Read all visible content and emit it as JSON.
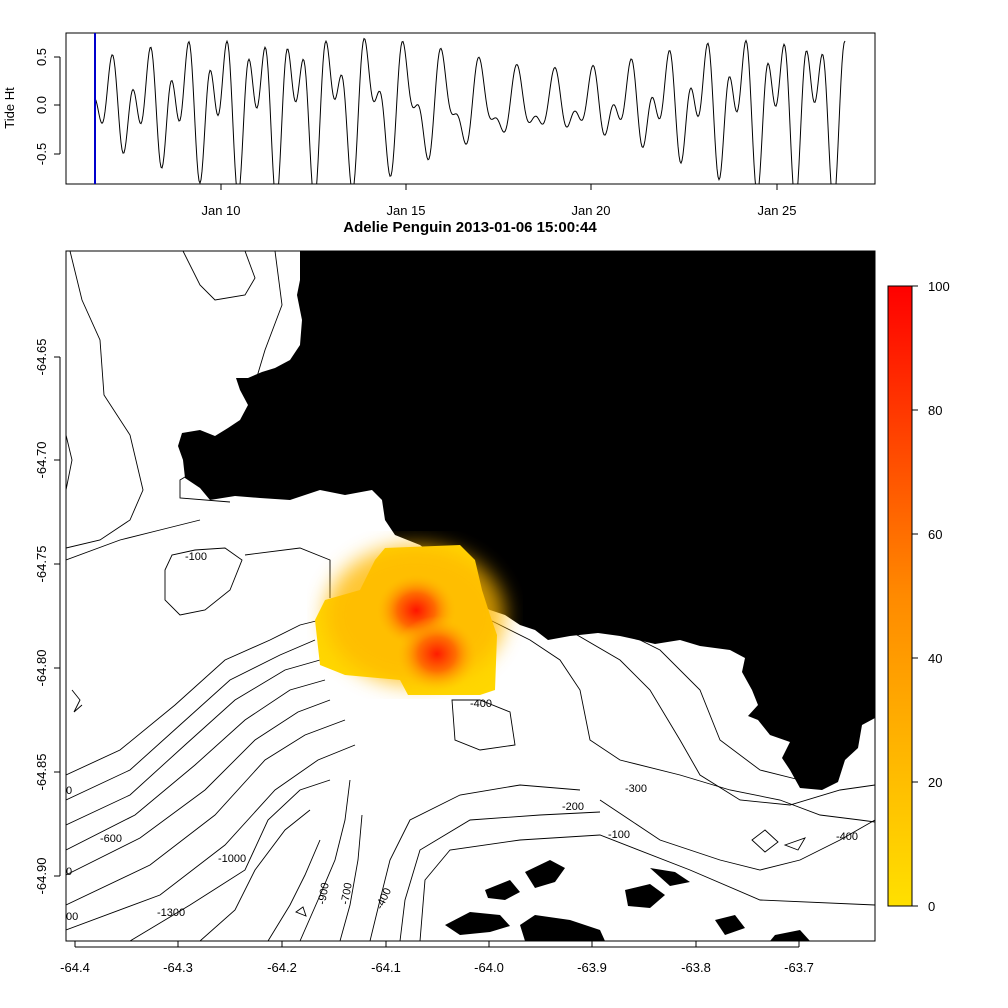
{
  "tide_panel": {
    "ylabel": "Tide Ht",
    "y_ticks": [
      "-0.5",
      "0.0",
      "0.5"
    ],
    "x_ticks": [
      "Jan 10",
      "Jan 15",
      "Jan 20",
      "Jan 25"
    ],
    "current_marker_color": "#0000cc"
  },
  "map_panel": {
    "title": "Adelie Penguin 2013-01-06 15:00:44",
    "x_ticks": [
      "-64.4",
      "-64.3",
      "-64.2",
      "-64.1",
      "-64.0",
      "-63.9",
      "-63.8",
      "-63.7"
    ],
    "y_ticks": [
      "-64.65",
      "-64.70",
      "-64.75",
      "-64.80",
      "-64.85",
      "-64.90"
    ],
    "contour_labels": [
      "-100",
      "-400",
      "-300",
      "-200",
      "-100",
      "-400",
      "-600",
      "-1000",
      "-1300",
      "-900",
      "-700",
      "-400",
      "0",
      "0",
      "00"
    ],
    "land_color": "#000000"
  },
  "colorbar": {
    "ticks": [
      "0",
      "20",
      "40",
      "60",
      "80",
      "100"
    ],
    "low_color": "#ffe000",
    "high_color": "#ff0000"
  },
  "chart_data": [
    {
      "type": "line",
      "title": "",
      "ylabel": "Tide Ht",
      "ylim": [
        -0.8,
        0.75
      ],
      "x_range": [
        "2013-01-05",
        "2013-01-27"
      ],
      "description_series": "tidal height oscillation, mixed semidiurnal/diurnal",
      "series": [
        {
          "x": [
            "2013-01-06 15:00"
          ],
          "values": [
            -0.15
          ]
        }
      ]
    },
    {
      "type": "heatmap",
      "title": "Adelie Penguin 2013-01-06 15:00:44",
      "xlim": [
        -64.4,
        -63.65
      ],
      "ylim": [
        -64.93,
        -64.6
      ],
      "color_scale": [
        0,
        100
      ],
      "hotspots": [
        {
          "lon": -64.07,
          "lat": -64.772,
          "value": 100
        },
        {
          "lon": -64.05,
          "lat": -64.793,
          "value": 95
        }
      ]
    }
  ]
}
